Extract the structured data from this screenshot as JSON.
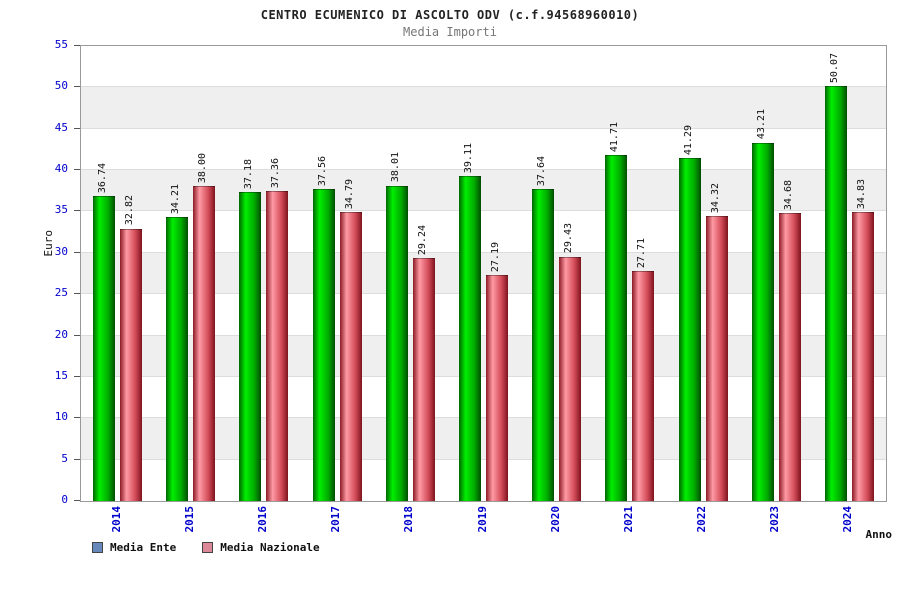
{
  "chart_data": {
    "type": "bar",
    "title": "CENTRO ECUMENICO DI ASCOLTO ODV (c.f.94568960010)",
    "subtitle": "Media Importi",
    "xlabel": "Anno",
    "ylabel": "Euro",
    "ylim": [
      0,
      55
    ],
    "ytick_step": 5,
    "grid": "banded",
    "legend_position": "bottom-left",
    "axis_label_color": "#0000cc",
    "categories": [
      "2014",
      "2015",
      "2016",
      "2017",
      "2018",
      "2019",
      "2020",
      "2021",
      "2022",
      "2023",
      "2024"
    ],
    "series": [
      {
        "key": "media-ente",
        "name": "Media Ente",
        "legend_color": "#6688bb",
        "bar_colors": [
          "#006600",
          "#00ee00",
          "#00aa00",
          "#004d00"
        ],
        "values": [
          "36.74",
          "34.21",
          "37.18",
          "37.56",
          "38.01",
          "39.11",
          "37.64",
          "41.71",
          "41.29",
          "43.21",
          "50.07"
        ]
      },
      {
        "key": "media-nazionale",
        "name": "Media Nazionale",
        "legend_color": "#dd8899",
        "bar_colors": [
          "#8b1a24",
          "#ff9aa4",
          "#d24b58",
          "#7e141e"
        ],
        "values": [
          "32.82",
          "38.00",
          "37.36",
          "34.79",
          "29.24",
          "27.19",
          "29.43",
          "27.71",
          "34.32",
          "34.68",
          "34.83"
        ]
      }
    ]
  }
}
